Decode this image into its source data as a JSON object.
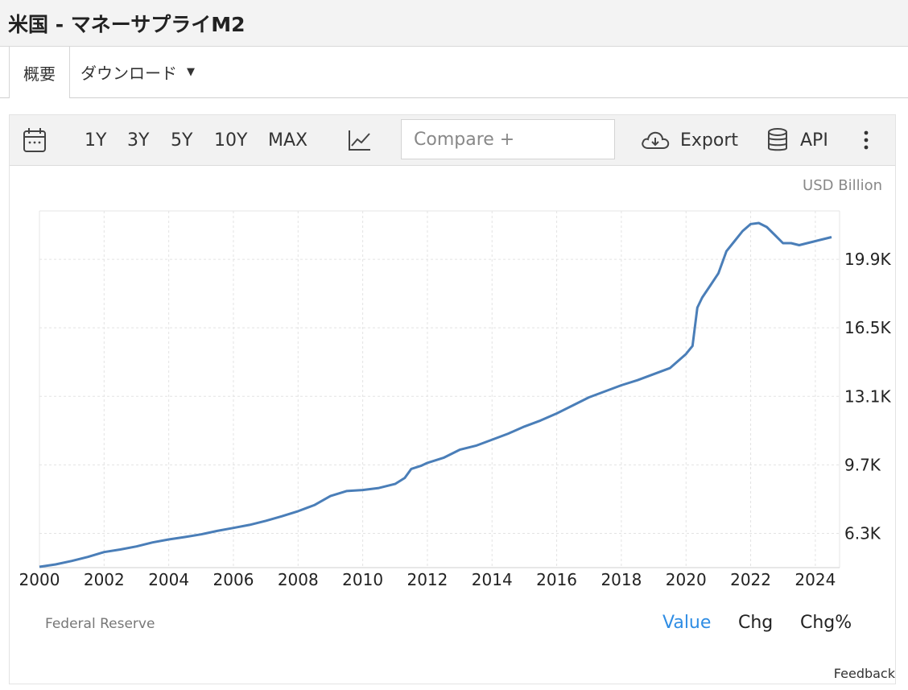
{
  "page": {
    "title": "米国 - マネーサプライM2"
  },
  "tabs": {
    "overview": "概要",
    "download": "ダウンロード"
  },
  "toolbar": {
    "ranges": [
      "1Y",
      "3Y",
      "5Y",
      "10Y",
      "MAX"
    ],
    "compare_placeholder": "Compare +",
    "export_label": "Export",
    "api_label": "API"
  },
  "chart": {
    "unit": "USD Billion",
    "source": "Federal Reserve",
    "modes": [
      "Value",
      "Chg",
      "Chg%"
    ],
    "active_mode": "Value",
    "feedback": "Feedback",
    "line_color": "#4a7eb8"
  },
  "chart_data": {
    "type": "line",
    "title": "",
    "xlabel": "",
    "ylabel": "",
    "unit": "USD Billion",
    "xlim": [
      2000,
      2024.75
    ],
    "ylim": [
      4600,
      22300
    ],
    "x_ticks": [
      2000,
      2002,
      2004,
      2006,
      2008,
      2010,
      2012,
      2014,
      2016,
      2018,
      2020,
      2022,
      2024
    ],
    "y_ticks": [
      6300,
      9700,
      13100,
      16500,
      19900
    ],
    "y_tick_labels": [
      "6.3K",
      "9.7K",
      "13.1K",
      "16.5K",
      "19.9K"
    ],
    "grid": true,
    "series": [
      {
        "x": [
          2000.0,
          2000.5,
          2001.0,
          2001.5,
          2002.0,
          2002.5,
          2003.0,
          2003.5,
          2004.0,
          2004.5,
          2005.0,
          2005.5,
          2006.0,
          2006.5,
          2007.0,
          2007.5,
          2008.0,
          2008.5,
          2009.0,
          2009.5,
          2010.0,
          2010.5,
          2011.0,
          2011.3,
          2011.5,
          2011.8,
          2012.0,
          2012.5,
          2013.0,
          2013.5,
          2014.0,
          2014.5,
          2015.0,
          2015.5,
          2016.0,
          2016.5,
          2017.0,
          2017.5,
          2018.0,
          2018.5,
          2019.0,
          2019.5,
          2020.0,
          2020.1,
          2020.2,
          2020.35,
          2020.5,
          2020.75,
          2021.0,
          2021.25,
          2021.5,
          2021.75,
          2022.0,
          2022.25,
          2022.5,
          2022.75,
          2023.0,
          2023.25,
          2023.5,
          2023.75,
          2024.0,
          2024.25,
          2024.5
        ],
        "y": [
          4640,
          4760,
          4930,
          5130,
          5370,
          5500,
          5650,
          5850,
          6000,
          6120,
          6250,
          6420,
          6570,
          6720,
          6920,
          7150,
          7400,
          7700,
          8150,
          8400,
          8450,
          8550,
          8750,
          9050,
          9500,
          9650,
          9800,
          10050,
          10450,
          10650,
          10950,
          11250,
          11600,
          11900,
          12250,
          12650,
          13050,
          13350,
          13650,
          13900,
          14200,
          14500,
          15200,
          15400,
          15600,
          17500,
          18000,
          18600,
          19200,
          20300,
          20800,
          21300,
          21650,
          21700,
          21500,
          21100,
          20700,
          20700,
          20600,
          20700,
          20800,
          20900,
          21000
        ]
      }
    ]
  }
}
